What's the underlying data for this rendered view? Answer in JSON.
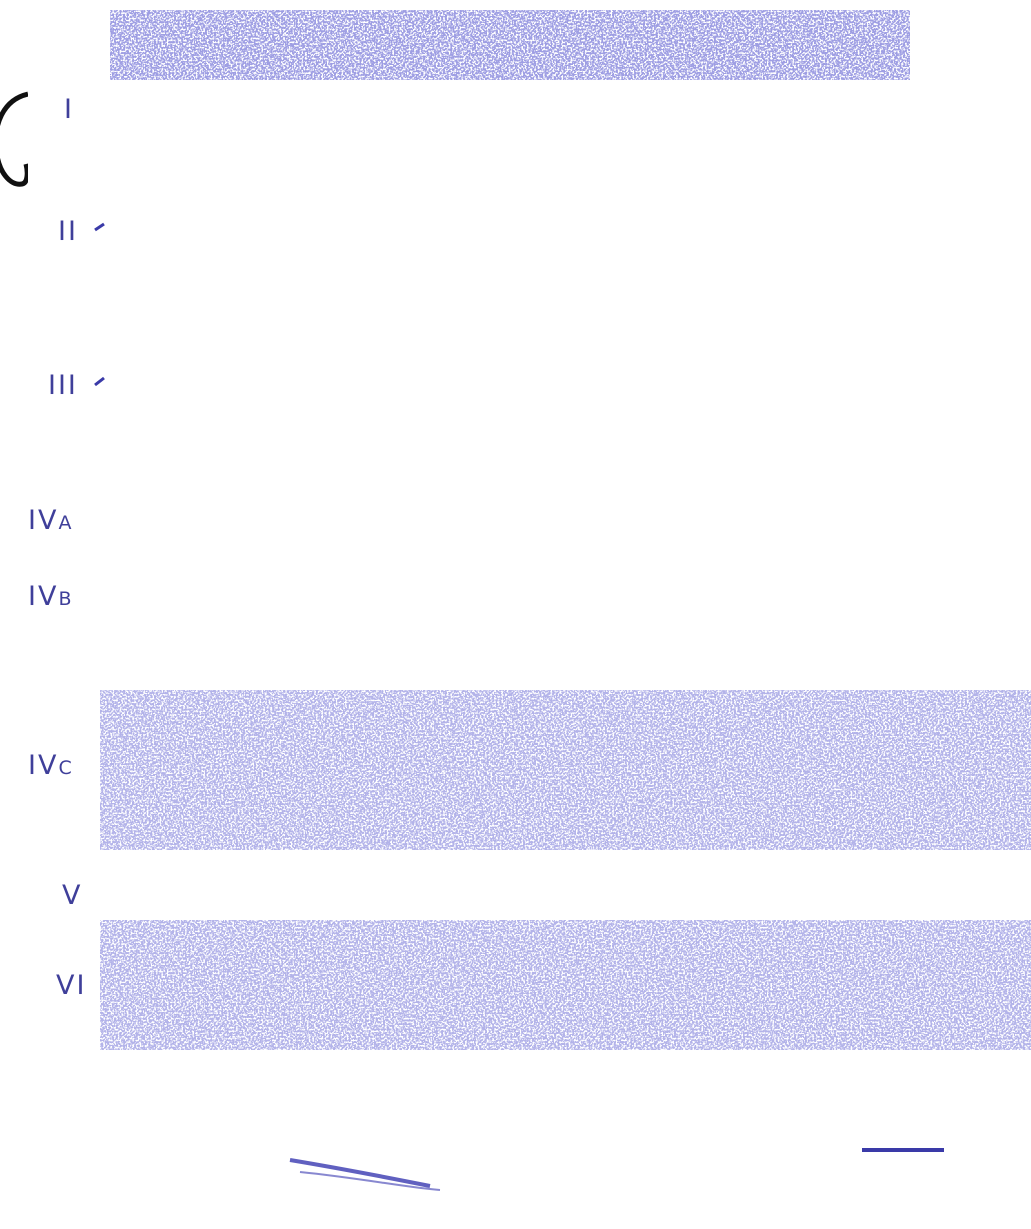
{
  "panel_letter": "",
  "layers": [
    {
      "id": "I",
      "label": "I",
      "sub": ""
    },
    {
      "id": "II",
      "label": "II",
      "sub": ""
    },
    {
      "id": "III",
      "label": "III",
      "sub": ""
    },
    {
      "id": "IVA",
      "label": "IV",
      "sub": "A"
    },
    {
      "id": "IVB",
      "label": "IV",
      "sub": "B"
    },
    {
      "id": "IVC",
      "label": "IV",
      "sub": "C"
    },
    {
      "id": "V",
      "label": "V",
      "sub": ""
    },
    {
      "id": "VI",
      "label": "VI",
      "sub": ""
    }
  ],
  "colors": {
    "stain": "#2f2fb0",
    "label": "#3f3f9a",
    "background": "#ffffff"
  },
  "icons": {
    "scale_bar": "scale-bar-icon",
    "partial_letter": "partial-letter-glyph"
  }
}
